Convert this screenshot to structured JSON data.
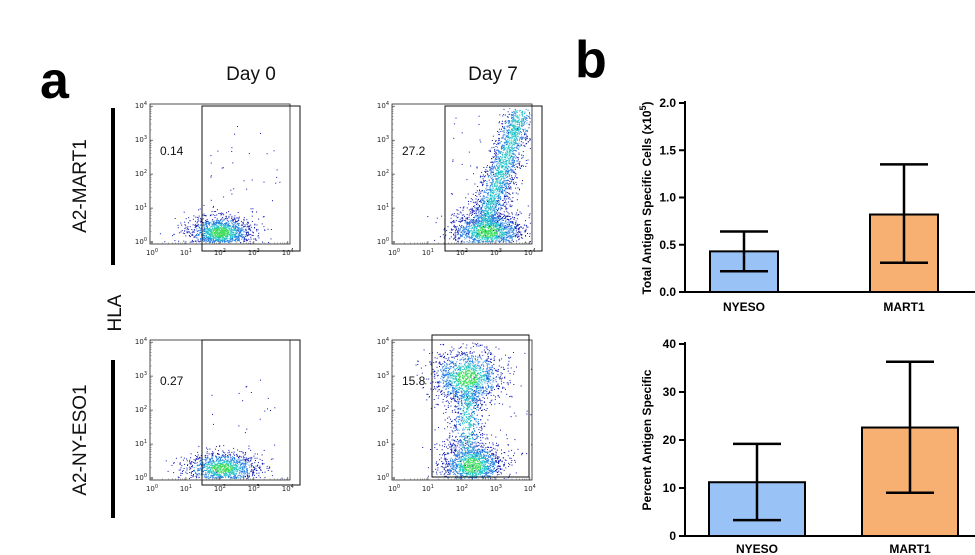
{
  "figure": {
    "panel_a_label": "a",
    "panel_b_label": "b",
    "col_titles": [
      "Day 0",
      "Day 7"
    ],
    "row_labels": [
      "A2-MART1",
      "A2-NY-ESO1"
    ],
    "shared_axis_label": "HLA"
  },
  "chart_data": [
    {
      "type": "scatter",
      "subtype": "flow-cytometry-density-plots",
      "axis_scale": "log",
      "axis_tick_exponents": [
        "0",
        "1",
        "2",
        "3",
        "4"
      ],
      "axis_tick_base": "10",
      "colormap": [
        "#0b16b0",
        "#1f7de0",
        "#22c4c8",
        "#3ddc5c"
      ],
      "plots": [
        {
          "row": "A2-MART1",
          "col": "Day 0",
          "gate_percent": "0.14"
        },
        {
          "row": "A2-MART1",
          "col": "Day 7",
          "gate_percent": "27.2"
        },
        {
          "row": "A2-NY-ESO1",
          "col": "Day 0",
          "gate_percent": "0.27"
        },
        {
          "row": "A2-NY-ESO1",
          "col": "Day 7",
          "gate_percent": "15.8"
        }
      ]
    },
    {
      "type": "bar",
      "categories": [
        "NYESO",
        "MART1"
      ],
      "colors": [
        "#99c2f7",
        "#f7b071"
      ],
      "ylabel": "Total  Antigen Specific Cells (x10^5)",
      "ylabel_parts": {
        "main": "Total  Antigen Specific Cells (x10",
        "sup": "5",
        "end": ")"
      },
      "ylim": [
        0,
        2.0
      ],
      "yticks": [
        "0.0",
        "0.5",
        "1.0",
        "1.5",
        "2.0"
      ],
      "values": [
        0.43,
        0.82
      ],
      "error_low": [
        0.22,
        0.31
      ],
      "error_high": [
        0.64,
        1.35
      ]
    },
    {
      "type": "bar",
      "categories": [
        "NYESO",
        "MART1"
      ],
      "colors": [
        "#99c2f7",
        "#f7b071"
      ],
      "ylabel": "Percent Antigen Specific",
      "ylim": [
        0,
        40
      ],
      "yticks": [
        "0",
        "10",
        "20",
        "30",
        "40"
      ],
      "values": [
        11.2,
        22.6
      ],
      "error_low": [
        3.3,
        9.0
      ],
      "error_high": [
        19.2,
        36.3
      ]
    }
  ]
}
